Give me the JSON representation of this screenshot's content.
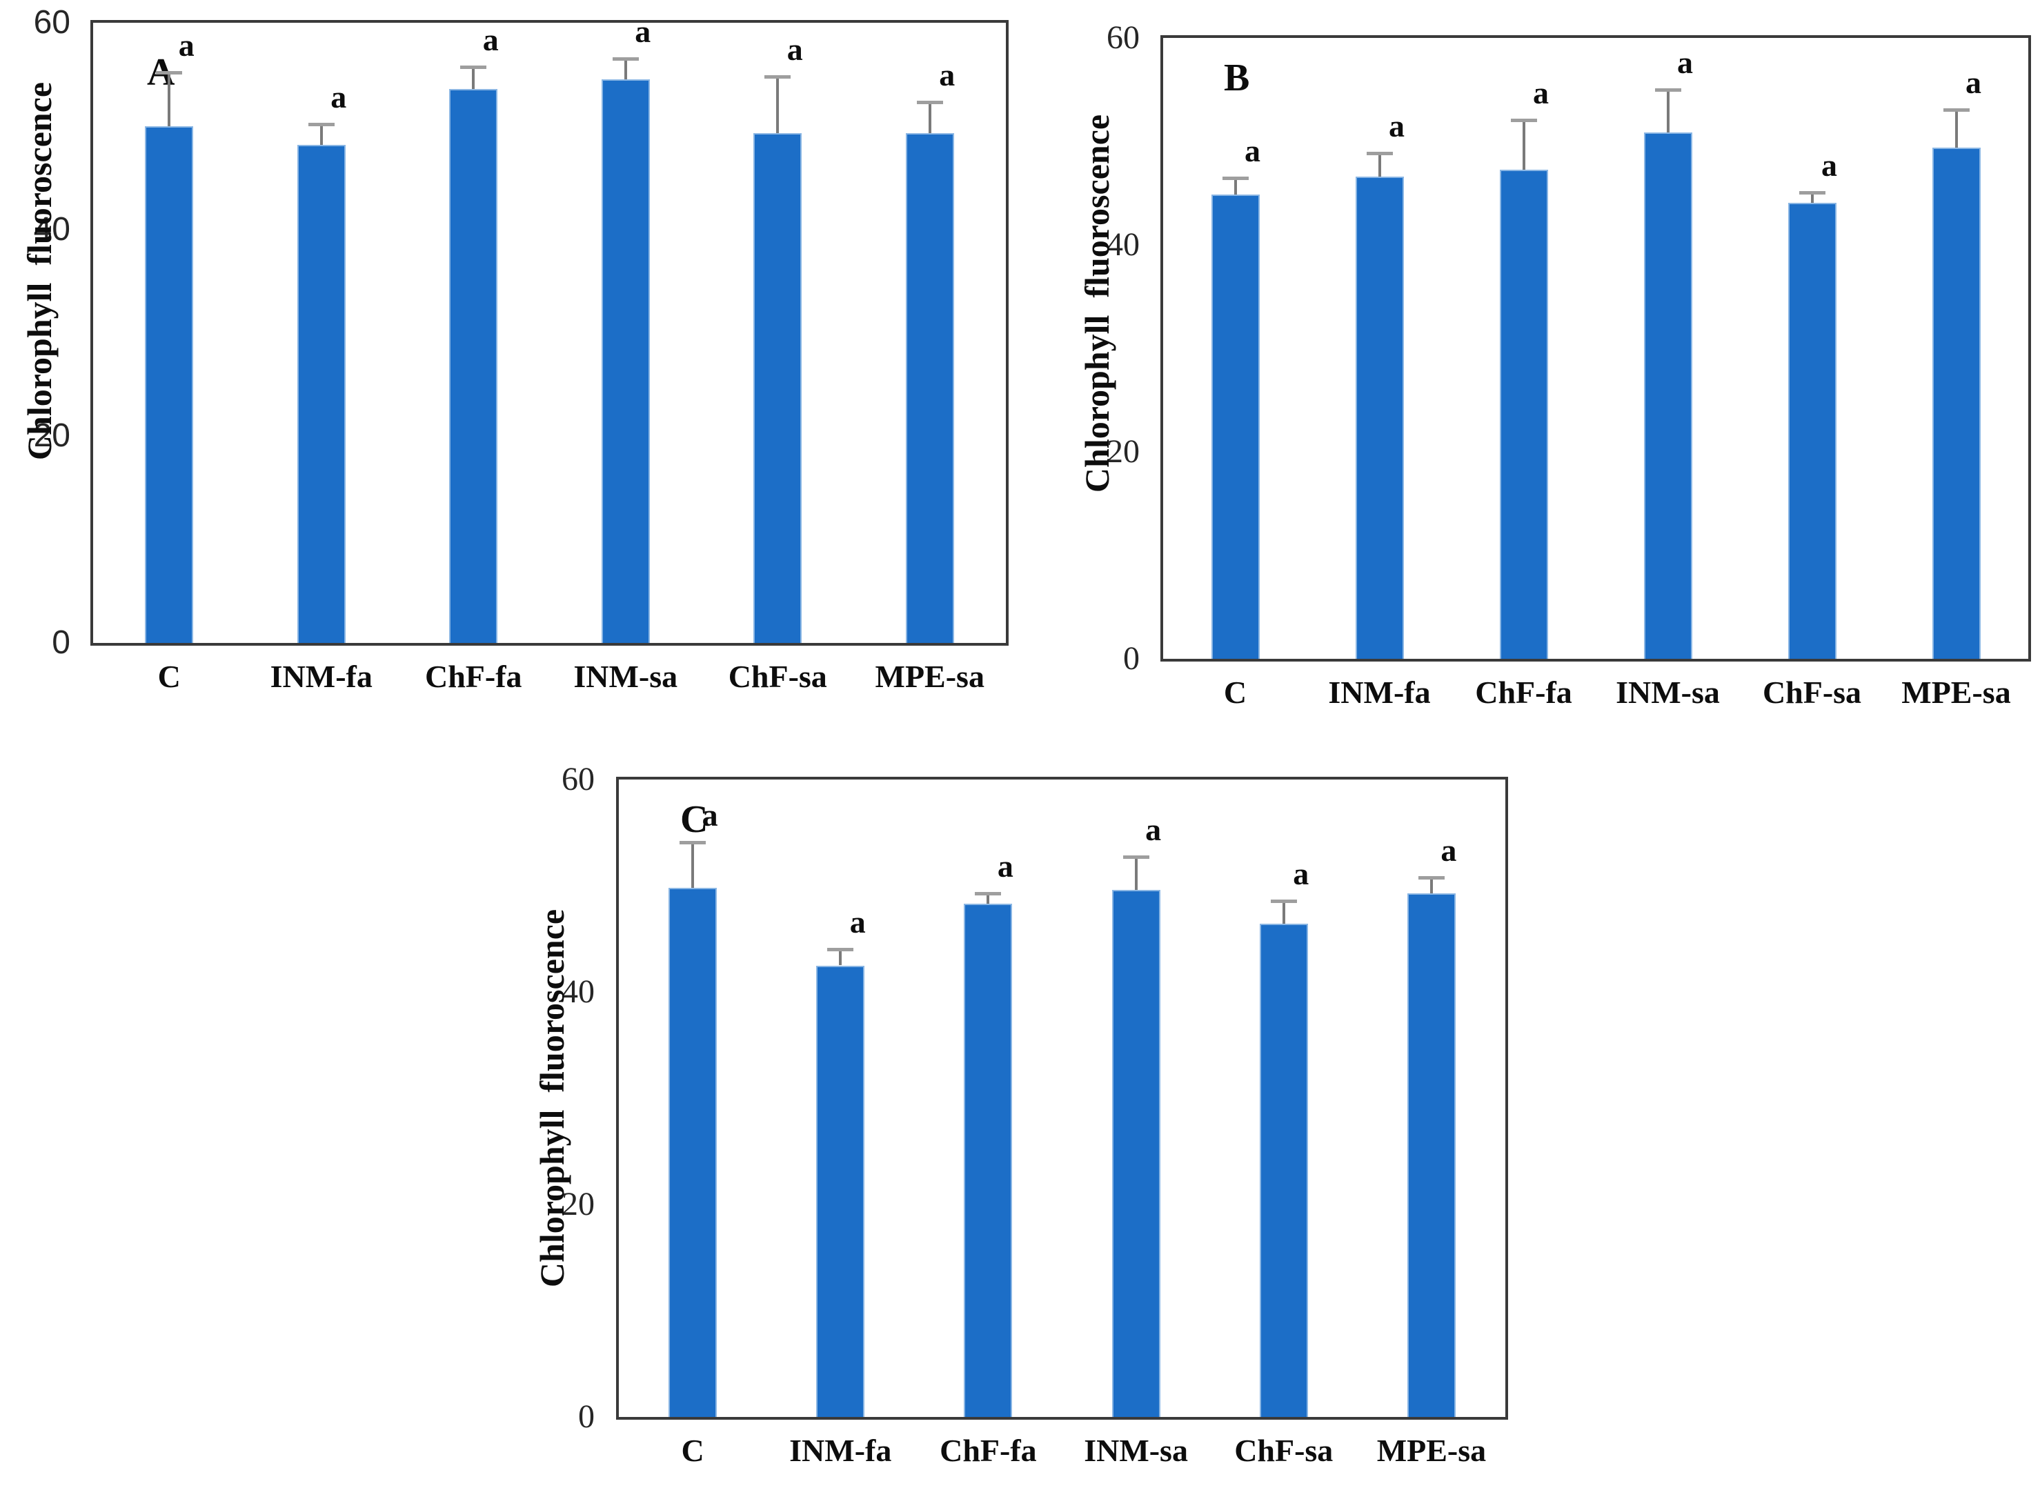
{
  "colors": {
    "bar_fill": "#1C6EC7",
    "bar_edge": "#8AB6E4",
    "error_stem": "#7A7A7A",
    "error_cap": "#9E9E9E",
    "axis_frame": "#3A3A3A",
    "text": "#0D0D0D"
  },
  "chart_data": [
    {
      "type": "bar",
      "panel_label": "A",
      "ylabel": "Chlorophyll  fluoroscence",
      "xlabel": "",
      "ylim": [
        0,
        60
      ],
      "yticks": [
        0,
        20,
        40,
        60
      ],
      "grid": false,
      "legend": "none",
      "categories": [
        "C",
        "INM-fa",
        "ChF-fa",
        "INM-sa",
        "ChF-sa",
        "MPE-sa"
      ],
      "values": [
        50.0,
        48.2,
        53.6,
        54.5,
        49.3,
        49.3
      ],
      "errors": [
        5.2,
        2.0,
        2.1,
        2.0,
        5.5,
        3.0
      ],
      "sig_labels": [
        "a",
        "a",
        "a",
        "a",
        "a",
        "a"
      ]
    },
    {
      "type": "bar",
      "panel_label": "B",
      "ylabel": "Chlorophyll  fluoroscence",
      "xlabel": "",
      "ylim": [
        0,
        60
      ],
      "yticks": [
        0,
        20,
        40,
        60
      ],
      "grid": false,
      "legend": "none",
      "categories": [
        "C",
        "INM-fa",
        "ChF-fa",
        "INM-sa",
        "ChF-sa",
        "MPE-sa"
      ],
      "values": [
        44.9,
        46.6,
        47.3,
        50.9,
        44.1,
        49.4
      ],
      "errors": [
        1.6,
        2.3,
        4.8,
        4.1,
        1.0,
        3.7
      ],
      "sig_labels": [
        "a",
        "a",
        "a",
        "a",
        "a",
        "a"
      ]
    },
    {
      "type": "bar",
      "panel_label": "C",
      "ylabel": "Chlorophyll  fluoroscence",
      "xlabel": "",
      "ylim": [
        0,
        60
      ],
      "yticks": [
        0,
        20,
        40,
        60
      ],
      "grid": false,
      "legend": "none",
      "categories": [
        "C",
        "INM-fa",
        "ChF-fa",
        "INM-sa",
        "ChF-sa",
        "MPE-sa"
      ],
      "values": [
        49.8,
        42.5,
        48.3,
        49.6,
        46.4,
        49.3
      ],
      "errors": [
        4.3,
        1.5,
        1.0,
        3.1,
        2.2,
        1.5
      ],
      "sig_labels": [
        "a",
        "a",
        "a",
        "a",
        "a",
        "a"
      ]
    }
  ]
}
